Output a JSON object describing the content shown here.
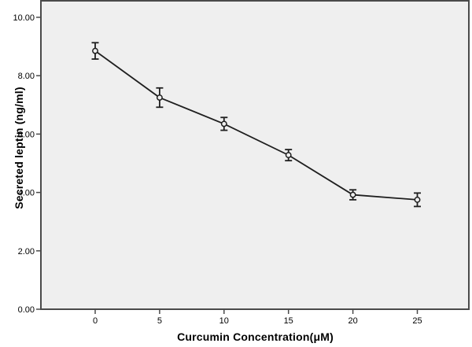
{
  "chart_data": {
    "type": "line",
    "title": "",
    "xlabel": "Curcumin Concentration(μM)",
    "ylabel": "Secreted leptin (ng/ml)",
    "x": [
      0,
      5,
      10,
      15,
      20,
      25
    ],
    "series": [
      {
        "name": "Secreted leptin (ng/ml)",
        "values": [
          8.85,
          7.25,
          6.35,
          5.28,
          3.92,
          3.75
        ],
        "errors": [
          0.28,
          0.33,
          0.22,
          0.19,
          0.17,
          0.23
        ]
      }
    ],
    "xlim": [
      -4.2,
      29.0
    ],
    "ylim": [
      0,
      10.56
    ],
    "xticks": [
      "0",
      "5",
      "10",
      "15",
      "20",
      "25"
    ],
    "xtick_values": [
      0,
      5,
      10,
      15,
      20,
      25
    ],
    "yticks": [
      "0.00",
      "2.00",
      "4.00",
      "6.00",
      "8.00",
      "10.00"
    ],
    "ytick_values": [
      0,
      2,
      4,
      6,
      8,
      10
    ],
    "grid": false,
    "legend": "none",
    "marker": "open-circle",
    "error_bars": true,
    "colors": {
      "plot_background": "#efefef",
      "frame": "#4a4a4a",
      "line": "#1f1f1f",
      "marker_stroke": "#1f1f1f",
      "tick_text": "#000000",
      "page_background": "#ffffff"
    }
  }
}
